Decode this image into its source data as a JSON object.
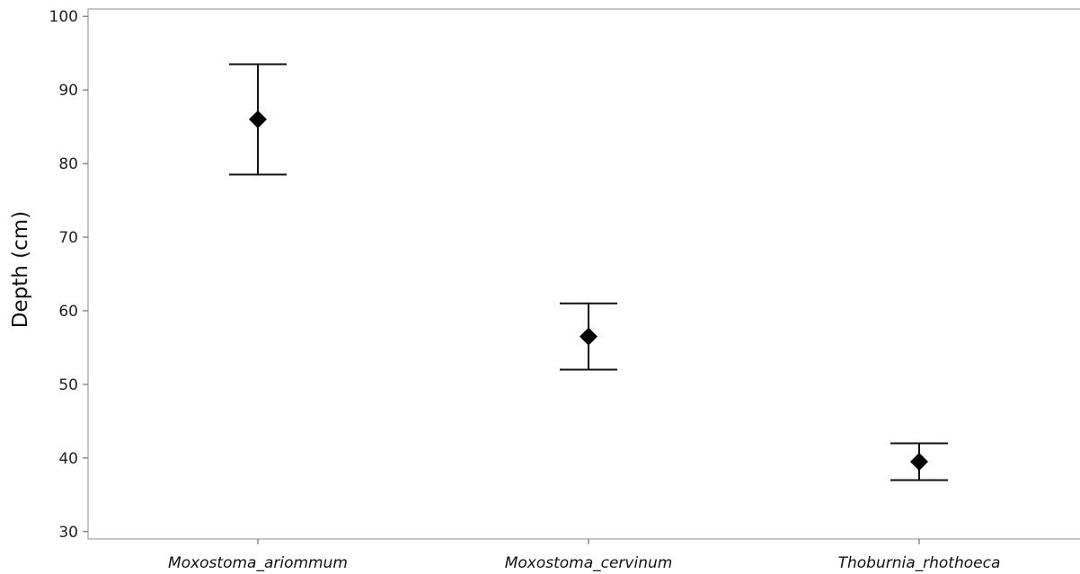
{
  "chart_data": {
    "type": "scatter",
    "title": "",
    "xlabel": "",
    "ylabel": "Depth (cm)",
    "categories": [
      "Moxostoma_ariommum",
      "Moxostoma_cervinum",
      "Thoburnia_rhothoeca"
    ],
    "values": [
      86,
      56.5,
      39.5
    ],
    "error_low": [
      78.5,
      52,
      37
    ],
    "error_high": [
      93.5,
      61,
      42
    ],
    "ylim": [
      29,
      101
    ],
    "yticks": [
      30,
      40,
      50,
      60,
      70,
      80,
      90,
      100
    ],
    "grid": false,
    "legend": "none",
    "colors": {
      "marker": "#000000",
      "errorbar": "#111111",
      "frame": "#b4b4b4"
    }
  }
}
